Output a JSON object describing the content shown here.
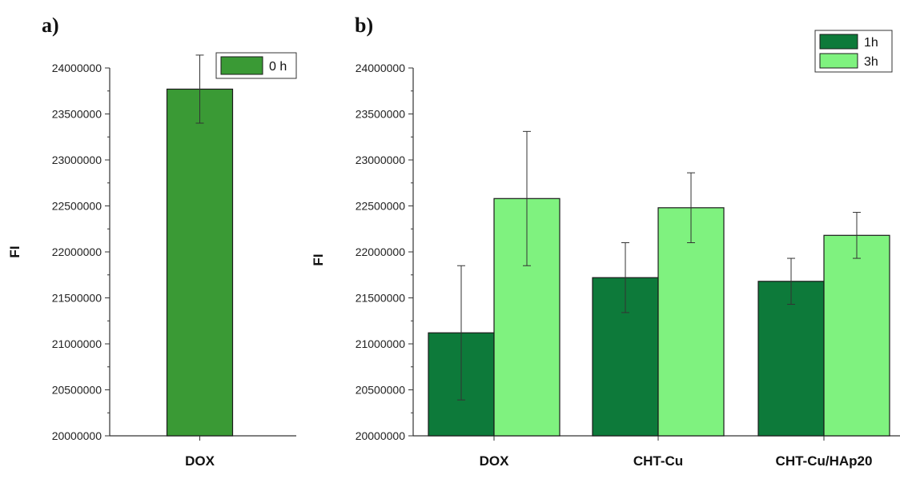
{
  "panel_labels": [
    "a)",
    "b)"
  ],
  "chart_data": [
    {
      "type": "bar",
      "ylabel": "FI",
      "ylim": [
        20000000,
        24000000
      ],
      "ytick_step": 500000,
      "categories": [
        "DOX"
      ],
      "series": [
        {
          "name": "0 h",
          "values": [
            23770000
          ],
          "errors": [
            370000
          ],
          "color": "#3a9a35"
        }
      ],
      "legend": "top-right"
    },
    {
      "type": "bar",
      "ylabel": "FI",
      "ylim": [
        20000000,
        24000000
      ],
      "ytick_step": 500000,
      "categories": [
        "DOX",
        "CHT-Cu",
        "CHT-Cu/HAp20"
      ],
      "series": [
        {
          "name": "1h",
          "values": [
            21120000,
            21720000,
            21680000
          ],
          "errors": [
            730000,
            380000,
            250000
          ],
          "color": "#0d7a3a"
        },
        {
          "name": "3h",
          "values": [
            22580000,
            22480000,
            22180000
          ],
          "errors": [
            730000,
            380000,
            250000
          ],
          "color": "#7ff27f"
        }
      ],
      "legend": "top-right"
    }
  ]
}
